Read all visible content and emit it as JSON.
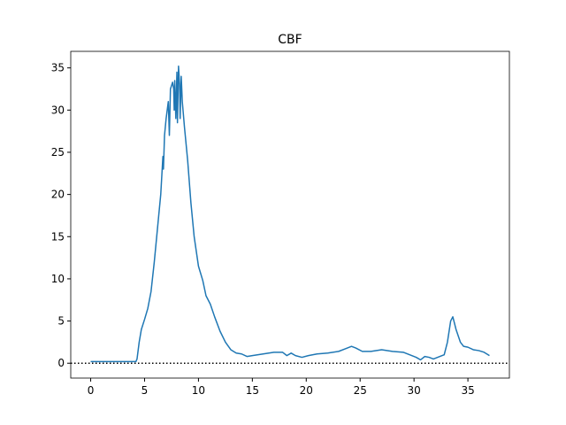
{
  "chart_data": {
    "type": "line",
    "title": "CBF",
    "x": [
      0,
      1,
      2,
      3,
      4,
      4.2,
      4.3,
      4.5,
      4.7,
      5.0,
      5.3,
      5.6,
      5.9,
      6.2,
      6.5,
      6.7,
      6.75,
      6.85,
      7.0,
      7.2,
      7.3,
      7.4,
      7.6,
      7.7,
      7.75,
      7.8,
      7.9,
      8.0,
      8.05,
      8.15,
      8.25,
      8.3,
      8.4,
      8.5,
      8.7,
      9.0,
      9.3,
      9.6,
      10.0,
      10.4,
      10.7,
      11.1,
      11.5,
      12.0,
      12.5,
      13.0,
      13.5,
      14.0,
      14.5,
      15.0,
      16.0,
      17.0,
      17.8,
      18.2,
      18.6,
      19.0,
      19.6,
      20.2,
      21.0,
      22.0,
      23.0,
      23.6,
      24.2,
      24.6,
      25.2,
      26.0,
      27.0,
      28.0,
      29.0,
      29.6,
      30.2,
      30.6,
      31.0,
      31.4,
      31.8,
      32.4,
      32.8,
      33.1,
      33.4,
      33.6,
      33.9,
      34.3,
      34.6,
      35.0,
      35.5,
      36.0,
      36.5,
      37.0
    ],
    "series": [
      {
        "color": "#1f77b4",
        "values": [
          0.2,
          0.2,
          0.2,
          0.2,
          0.2,
          0.2,
          0.5,
          2.5,
          4.0,
          5.2,
          6.5,
          8.5,
          12,
          16,
          20,
          24.5,
          23,
          27,
          29,
          31,
          27,
          32.5,
          33.3,
          32.5,
          30,
          33.5,
          29,
          34.5,
          28.5,
          35.2,
          33,
          29,
          34,
          31,
          28,
          24,
          19,
          15,
          11.5,
          9.8,
          8,
          7,
          5.5,
          3.8,
          2.5,
          1.6,
          1.2,
          1.1,
          0.8,
          0.9,
          1.1,
          1.3,
          1.3,
          0.9,
          1.2,
          0.9,
          0.7,
          0.9,
          1.1,
          1.2,
          1.4,
          1.7,
          2.0,
          1.8,
          1.4,
          1.4,
          1.6,
          1.4,
          1.3,
          1.0,
          0.7,
          0.4,
          0.8,
          0.7,
          0.5,
          0.8,
          1.0,
          2.5,
          5.0,
          5.5,
          4.0,
          2.5,
          2.0,
          1.9,
          1.6,
          1.5,
          1.3,
          0.9
        ]
      }
    ],
    "hline": {
      "value": 0,
      "color": "#000000"
    },
    "xlim": [
      -1.85,
      38.85
    ],
    "ylim": [
      -1.76,
      36.96
    ],
    "xticks": [
      0,
      5,
      10,
      15,
      20,
      25,
      30,
      35
    ],
    "yticks": [
      0,
      5,
      10,
      15,
      20,
      25,
      30,
      35
    ]
  }
}
